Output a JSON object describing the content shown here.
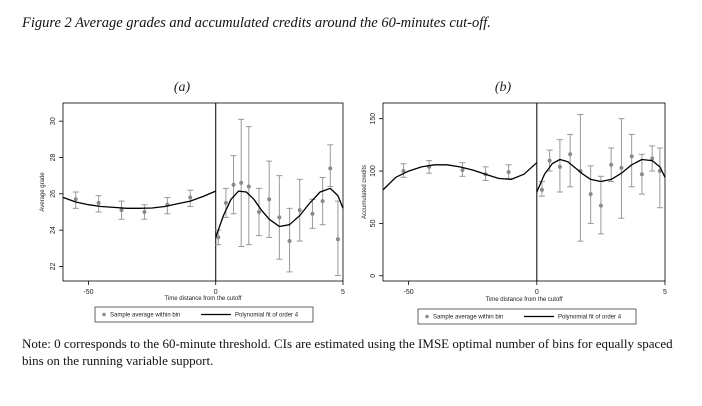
{
  "figure": {
    "title": "Figure 2 Average grades and accumulated credits around the 60-minutes cut-off.",
    "note": "Note: 0 corresponds to the 60-minute threshold. CIs are estimated using the IMSE optimal number of bins for equally spaced bins on the running variable support."
  },
  "chart_data": [
    {
      "type": "scatter",
      "panel_label": "(a)",
      "xlabel": "Time distance from the cutoff",
      "ylabel": "Average grade",
      "xlim": [
        -60,
        50
      ],
      "ylim": [
        21.2,
        31
      ],
      "x_ticks": [
        -50,
        0,
        5
      ],
      "y_ticks": [
        22,
        24,
        26,
        28,
        30
      ],
      "cutoff": 0,
      "grid": false,
      "legend": {
        "position": "bottom",
        "entries": [
          "Sample average within bin",
          "Polynomial fit of order 4"
        ]
      },
      "series": [
        {
          "name": "Sample average within bin",
          "points": [
            {
              "x": -55,
              "y": 25.7,
              "lo": 25.2,
              "hi": 26.1
            },
            {
              "x": -46,
              "y": 25.5,
              "lo": 25.0,
              "hi": 25.9
            },
            {
              "x": -37,
              "y": 25.1,
              "lo": 24.6,
              "hi": 25.6
            },
            {
              "x": -28,
              "y": 25.0,
              "lo": 24.6,
              "hi": 25.4
            },
            {
              "x": -19,
              "y": 25.4,
              "lo": 24.9,
              "hi": 25.8
            },
            {
              "x": -10,
              "y": 25.8,
              "lo": 25.3,
              "hi": 26.2
            },
            {
              "x": 1,
              "y": 23.6,
              "lo": 23.2,
              "hi": 24.0
            },
            {
              "x": 4,
              "y": 25.5,
              "lo": 24.7,
              "hi": 26.3
            },
            {
              "x": 7,
              "y": 26.5,
              "lo": 24.9,
              "hi": 28.1
            },
            {
              "x": 10,
              "y": 26.6,
              "lo": 23.1,
              "hi": 30.1
            },
            {
              "x": 13,
              "y": 26.4,
              "lo": 23.2,
              "hi": 29.7
            },
            {
              "x": 17,
              "y": 25.0,
              "lo": 23.7,
              "hi": 26.3
            },
            {
              "x": 21,
              "y": 25.7,
              "lo": 23.6,
              "hi": 27.8
            },
            {
              "x": 25,
              "y": 24.7,
              "lo": 22.4,
              "hi": 27.0
            },
            {
              "x": 29,
              "y": 23.4,
              "lo": 21.7,
              "hi": 25.2
            },
            {
              "x": 33,
              "y": 25.1,
              "lo": 23.4,
              "hi": 26.8
            },
            {
              "x": 38,
              "y": 24.9,
              "lo": 24.1,
              "hi": 25.7
            },
            {
              "x": 42,
              "y": 25.6,
              "lo": 24.3,
              "hi": 26.9
            },
            {
              "x": 45,
              "y": 27.4,
              "lo": 26.4,
              "hi": 28.7
            },
            {
              "x": 48,
              "y": 23.5,
              "lo": 21.5,
              "hi": 25.6
            }
          ]
        },
        {
          "name": "Polynomial fit of order 4",
          "left": [
            [
              -60,
              25.8
            ],
            [
              -55,
              25.55
            ],
            [
              -50,
              25.4
            ],
            [
              -45,
              25.3
            ],
            [
              -40,
              25.25
            ],
            [
              -35,
              25.2
            ],
            [
              -30,
              25.2
            ],
            [
              -25,
              25.22
            ],
            [
              -20,
              25.3
            ],
            [
              -15,
              25.45
            ],
            [
              -10,
              25.6
            ],
            [
              -5,
              25.85
            ],
            [
              0,
              26.15
            ]
          ],
          "right": [
            [
              0,
              23.6
            ],
            [
              3,
              24.8
            ],
            [
              6,
              25.7
            ],
            [
              9,
              26.15
            ],
            [
              12,
              26.1
            ],
            [
              15,
              25.7
            ],
            [
              18,
              25.1
            ],
            [
              21,
              24.6
            ],
            [
              25,
              24.2
            ],
            [
              29,
              24.3
            ],
            [
              33,
              24.8
            ],
            [
              37,
              25.5
            ],
            [
              41,
              26.1
            ],
            [
              45,
              26.3
            ],
            [
              48,
              25.9
            ],
            [
              50,
              25.2
            ]
          ]
        }
      ]
    },
    {
      "type": "scatter",
      "panel_label": "(b)",
      "xlabel": "Time distance from the cutoff",
      "ylabel": "Accumulated credits",
      "xlim": [
        -60,
        50
      ],
      "ylim": [
        -5,
        165
      ],
      "x_ticks": [
        -50,
        0,
        5
      ],
      "y_ticks": [
        0,
        50,
        100,
        150
      ],
      "cutoff": 0,
      "grid": false,
      "legend": {
        "position": "bottom",
        "entries": [
          "Sample average within bin",
          "Polynomial fit of order 4"
        ]
      },
      "series": [
        {
          "name": "Sample average within bin",
          "points": [
            {
              "x": -52,
              "y": 100,
              "lo": 94,
              "hi": 107
            },
            {
              "x": -42,
              "y": 104,
              "lo": 98,
              "hi": 110
            },
            {
              "x": -29,
              "y": 101,
              "lo": 95,
              "hi": 108
            },
            {
              "x": -20,
              "y": 97,
              "lo": 91,
              "hi": 104
            },
            {
              "x": -11,
              "y": 99,
              "lo": 93,
              "hi": 106
            },
            {
              "x": 2,
              "y": 82,
              "lo": 76,
              "hi": 90
            },
            {
              "x": 5,
              "y": 110,
              "lo": 100,
              "hi": 120
            },
            {
              "x": 9,
              "y": 104,
              "lo": 80,
              "hi": 130
            },
            {
              "x": 13,
              "y": 116,
              "lo": 85,
              "hi": 135
            },
            {
              "x": 17,
              "y": 100,
              "lo": 33,
              "hi": 154
            },
            {
              "x": 21,
              "y": 78,
              "lo": 50,
              "hi": 105
            },
            {
              "x": 25,
              "y": 67,
              "lo": 40,
              "hi": 95
            },
            {
              "x": 29,
              "y": 106,
              "lo": 90,
              "hi": 122
            },
            {
              "x": 33,
              "y": 103,
              "lo": 55,
              "hi": 150
            },
            {
              "x": 37,
              "y": 114,
              "lo": 85,
              "hi": 135
            },
            {
              "x": 41,
              "y": 97,
              "lo": 78,
              "hi": 116
            },
            {
              "x": 45,
              "y": 112,
              "lo": 100,
              "hi": 124
            },
            {
              "x": 48,
              "y": 100,
              "lo": 65,
              "hi": 122
            }
          ]
        },
        {
          "name": "Polynomial fit of order 4",
          "left": [
            [
              -60,
              82
            ],
            [
              -55,
              94
            ],
            [
              -50,
              100
            ],
            [
              -45,
              104
            ],
            [
              -40,
              106
            ],
            [
              -35,
              106
            ],
            [
              -30,
              104
            ],
            [
              -25,
              101
            ],
            [
              -20,
              97
            ],
            [
              -15,
              93
            ],
            [
              -10,
              92
            ],
            [
              -5,
              97
            ],
            [
              0,
              108
            ]
          ],
          "right": [
            [
              0,
              80
            ],
            [
              3,
              97
            ],
            [
              6,
              107
            ],
            [
              9,
              111
            ],
            [
              12,
              109
            ],
            [
              15,
              103
            ],
            [
              18,
              97
            ],
            [
              21,
              92
            ],
            [
              25,
              90
            ],
            [
              29,
              92
            ],
            [
              33,
              98
            ],
            [
              37,
              106
            ],
            [
              41,
              111
            ],
            [
              45,
              110
            ],
            [
              48,
              104
            ],
            [
              50,
              94
            ]
          ]
        }
      ]
    }
  ]
}
